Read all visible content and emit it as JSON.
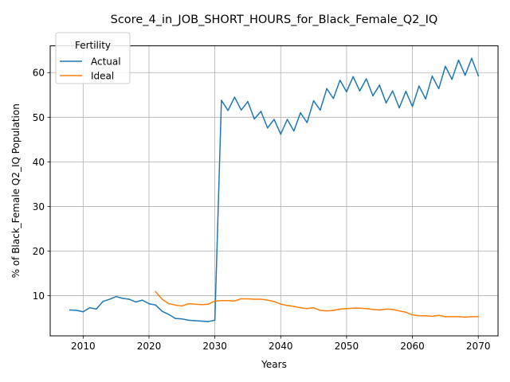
{
  "chart_data": {
    "type": "line",
    "title": "Score_4_in_JOB_SHORT_HOURS_for_Black_Female_Q2_IQ",
    "xlabel": "Years",
    "ylabel": "% of Black_Female Q2_IQ Population",
    "xlim": [
      2005,
      2073
    ],
    "ylim": [
      1,
      66
    ],
    "xticks": [
      2010,
      2020,
      2030,
      2040,
      2050,
      2060,
      2070
    ],
    "yticks": [
      10,
      20,
      30,
      40,
      50,
      60
    ],
    "grid": true,
    "legend": {
      "title": "Fertility",
      "position": "top-left"
    },
    "series": [
      {
        "name": "Actual",
        "color": "#1f77b4",
        "x": [
          2008,
          2009,
          2010,
          2011,
          2012,
          2013,
          2014,
          2015,
          2016,
          2017,
          2018,
          2019,
          2020,
          2021,
          2022,
          2023,
          2024,
          2025,
          2026,
          2027,
          2028,
          2029,
          2030,
          2031,
          2032,
          2033,
          2034,
          2035,
          2036,
          2037,
          2038,
          2039,
          2040,
          2041,
          2042,
          2043,
          2044,
          2045,
          2046,
          2047,
          2048,
          2049,
          2050,
          2051,
          2052,
          2053,
          2054,
          2055,
          2056,
          2057,
          2058,
          2059,
          2060,
          2061,
          2062,
          2063,
          2064,
          2065,
          2066,
          2067,
          2068,
          2069,
          2070
        ],
        "values": [
          6.8,
          6.7,
          6.4,
          7.3,
          7.0,
          8.7,
          9.2,
          9.8,
          9.4,
          9.2,
          8.6,
          9.0,
          8.2,
          7.9,
          6.5,
          5.8,
          4.9,
          4.8,
          4.5,
          4.4,
          4.3,
          4.2,
          4.5,
          53.8,
          51.5,
          54.5,
          51.6,
          53.5,
          49.6,
          51.3,
          47.6,
          49.5,
          46.2,
          49.5,
          46.9,
          51.0,
          48.8,
          53.7,
          51.6,
          56.4,
          54.2,
          58.3,
          55.7,
          59.1,
          55.9,
          58.6,
          54.8,
          57.2,
          53.2,
          55.9,
          52.1,
          55.8,
          52.4,
          57.0,
          54.1,
          59.2,
          56.4,
          61.4,
          58.5,
          62.8,
          59.4,
          63.2,
          59.3
        ]
      },
      {
        "name": "Ideal",
        "color": "#ff7f0e",
        "x": [
          2021,
          2022,
          2023,
          2024,
          2025,
          2026,
          2027,
          2028,
          2029,
          2030,
          2031,
          2032,
          2033,
          2034,
          2035,
          2036,
          2037,
          2038,
          2039,
          2040,
          2041,
          2042,
          2043,
          2044,
          2045,
          2046,
          2047,
          2048,
          2049,
          2050,
          2051,
          2052,
          2053,
          2054,
          2055,
          2056,
          2057,
          2058,
          2059,
          2060,
          2061,
          2062,
          2063,
          2064,
          2065,
          2066,
          2067,
          2068,
          2069,
          2070
        ],
        "values": [
          10.9,
          9.2,
          8.2,
          7.9,
          7.7,
          8.2,
          8.1,
          8.0,
          8.1,
          8.8,
          8.9,
          8.9,
          8.8,
          9.3,
          9.3,
          9.2,
          9.2,
          9.0,
          8.7,
          8.1,
          7.8,
          7.6,
          7.3,
          7.1,
          7.3,
          6.7,
          6.6,
          6.7,
          7.0,
          7.1,
          7.2,
          7.2,
          7.1,
          6.9,
          6.8,
          7.0,
          6.9,
          6.6,
          6.3,
          5.7,
          5.5,
          5.5,
          5.4,
          5.6,
          5.3,
          5.3,
          5.3,
          5.2,
          5.3,
          5.3
        ]
      }
    ]
  }
}
